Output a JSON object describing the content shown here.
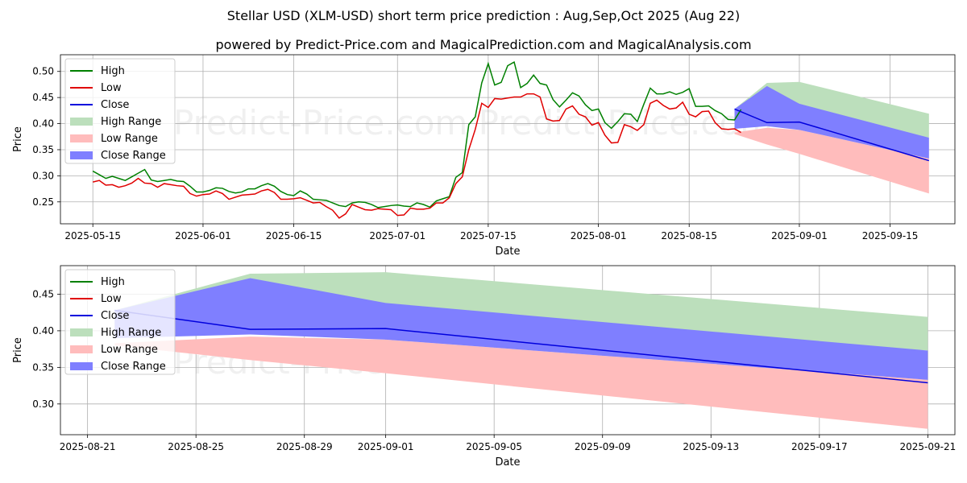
{
  "title": "Stellar USD (XLM-USD) short term price prediction : Aug,Sep,Oct 2025 (Aug 22)",
  "subtitle": "powered by Predict-Price.com and MagicalPrediction.com and MagicalAnalysis.com",
  "watermark": "Predict-Price.com  Predict-Price.com",
  "colors": {
    "high": "#008000",
    "low": "#e00000",
    "close": "#0000dd",
    "high_range": "#bcdfbc",
    "low_range": "#ffbcbc",
    "close_range": "#7f7fff"
  },
  "legend": [
    "High",
    "Low",
    "Close",
    "High Range",
    "Low Range",
    "Close Range"
  ],
  "chart_data": [
    {
      "type": "line",
      "xlabel": "Date",
      "ylabel": "Price",
      "xlim": [
        "2025-05-10",
        "2025-09-25"
      ],
      "ylim": [
        0.208,
        0.532
      ],
      "x_ticks": [
        "2025-05-15",
        "2025-06-01",
        "2025-06-15",
        "2025-07-01",
        "2025-07-15",
        "2025-08-01",
        "2025-08-15",
        "2025-09-01",
        "2025-09-15"
      ],
      "y_ticks": [
        "0.25",
        "0.30",
        "0.35",
        "0.40",
        "0.45",
        "0.50"
      ],
      "legend": "upper-left",
      "grid": true,
      "history": {
        "start": "2025-05-15",
        "high": [
          0.309,
          0.302,
          0.295,
          0.299,
          0.295,
          0.291,
          0.298,
          0.305,
          0.312,
          0.292,
          0.289,
          0.291,
          0.293,
          0.29,
          0.289,
          0.28,
          0.269,
          0.269,
          0.272,
          0.277,
          0.276,
          0.27,
          0.267,
          0.269,
          0.275,
          0.275,
          0.281,
          0.285,
          0.28,
          0.27,
          0.264,
          0.262,
          0.271,
          0.265,
          0.255,
          0.254,
          0.253,
          0.248,
          0.243,
          0.241,
          0.248,
          0.25,
          0.249,
          0.245,
          0.239,
          0.241,
          0.243,
          0.244,
          0.242,
          0.241,
          0.248,
          0.245,
          0.24,
          0.252,
          0.256,
          0.26,
          0.297,
          0.306,
          0.398,
          0.413,
          0.478,
          0.515,
          0.474,
          0.479,
          0.511,
          0.518,
          0.469,
          0.477,
          0.493,
          0.477,
          0.474,
          0.446,
          0.432,
          0.445,
          0.459,
          0.453,
          0.436,
          0.425,
          0.428,
          0.402,
          0.391,
          0.404,
          0.419,
          0.418,
          0.404,
          0.437,
          0.468,
          0.457,
          0.457,
          0.461,
          0.456,
          0.46,
          0.467,
          0.433,
          0.433,
          0.434,
          0.425,
          0.419,
          0.408,
          0.407,
          0.427
        ],
        "low": [
          0.288,
          0.291,
          0.282,
          0.283,
          0.278,
          0.281,
          0.286,
          0.295,
          0.286,
          0.285,
          0.278,
          0.285,
          0.283,
          0.281,
          0.28,
          0.266,
          0.261,
          0.264,
          0.265,
          0.271,
          0.266,
          0.255,
          0.259,
          0.263,
          0.264,
          0.265,
          0.271,
          0.274,
          0.268,
          0.255,
          0.255,
          0.256,
          0.258,
          0.253,
          0.248,
          0.249,
          0.241,
          0.234,
          0.219,
          0.227,
          0.245,
          0.24,
          0.235,
          0.234,
          0.237,
          0.236,
          0.235,
          0.224,
          0.225,
          0.238,
          0.236,
          0.236,
          0.238,
          0.248,
          0.248,
          0.258,
          0.285,
          0.298,
          0.35,
          0.389,
          0.439,
          0.431,
          0.448,
          0.447,
          0.449,
          0.451,
          0.451,
          0.457,
          0.457,
          0.451,
          0.409,
          0.405,
          0.406,
          0.428,
          0.434,
          0.418,
          0.413,
          0.397,
          0.402,
          0.378,
          0.363,
          0.364,
          0.398,
          0.394,
          0.387,
          0.398,
          0.439,
          0.445,
          0.435,
          0.428,
          0.43,
          0.441,
          0.418,
          0.413,
          0.423,
          0.424,
          0.402,
          0.39,
          0.389,
          0.39,
          0.383
        ]
      },
      "forecast": {
        "dates": [
          "2025-08-22",
          "2025-08-27",
          "2025-09-01",
          "2025-09-21"
        ],
        "close": [
          0.428,
          0.402,
          0.403,
          0.329
        ],
        "high_range": {
          "upper": [
            0.428,
            0.478,
            0.48,
            0.419
          ],
          "lower": [
            0.428,
            0.43,
            0.425,
            0.373
          ]
        },
        "close_range": {
          "upper": [
            0.428,
            0.472,
            0.438,
            0.373
          ],
          "lower": [
            0.39,
            0.395,
            0.388,
            0.333
          ]
        },
        "low_range": {
          "upper": [
            0.383,
            0.392,
            0.388,
            0.333
          ],
          "lower": [
            0.38,
            0.36,
            0.342,
            0.266
          ]
        }
      }
    },
    {
      "type": "line",
      "xlabel": "Date",
      "ylabel": "Price",
      "xlim": [
        "2025-08-20",
        "2025-09-22"
      ],
      "ylim": [
        0.258,
        0.489
      ],
      "x_ticks": [
        "2025-08-21",
        "2025-08-25",
        "2025-08-29",
        "2025-09-01",
        "2025-09-05",
        "2025-09-09",
        "2025-09-13",
        "2025-09-17",
        "2025-09-21"
      ],
      "y_ticks": [
        "0.30",
        "0.35",
        "0.40",
        "0.45"
      ],
      "legend": "upper-left",
      "grid": true,
      "forecast": {
        "dates": [
          "2025-08-22",
          "2025-08-27",
          "2025-09-01",
          "2025-09-21"
        ],
        "close": [
          0.428,
          0.402,
          0.403,
          0.329
        ],
        "high_range": {
          "upper": [
            0.428,
            0.478,
            0.48,
            0.419
          ],
          "lower": [
            0.428,
            0.43,
            0.425,
            0.373
          ]
        },
        "close_range": {
          "upper": [
            0.428,
            0.472,
            0.438,
            0.373
          ],
          "lower": [
            0.39,
            0.395,
            0.388,
            0.333
          ]
        },
        "low_range": {
          "upper": [
            0.383,
            0.392,
            0.388,
            0.333
          ],
          "lower": [
            0.38,
            0.36,
            0.342,
            0.266
          ]
        }
      }
    }
  ]
}
